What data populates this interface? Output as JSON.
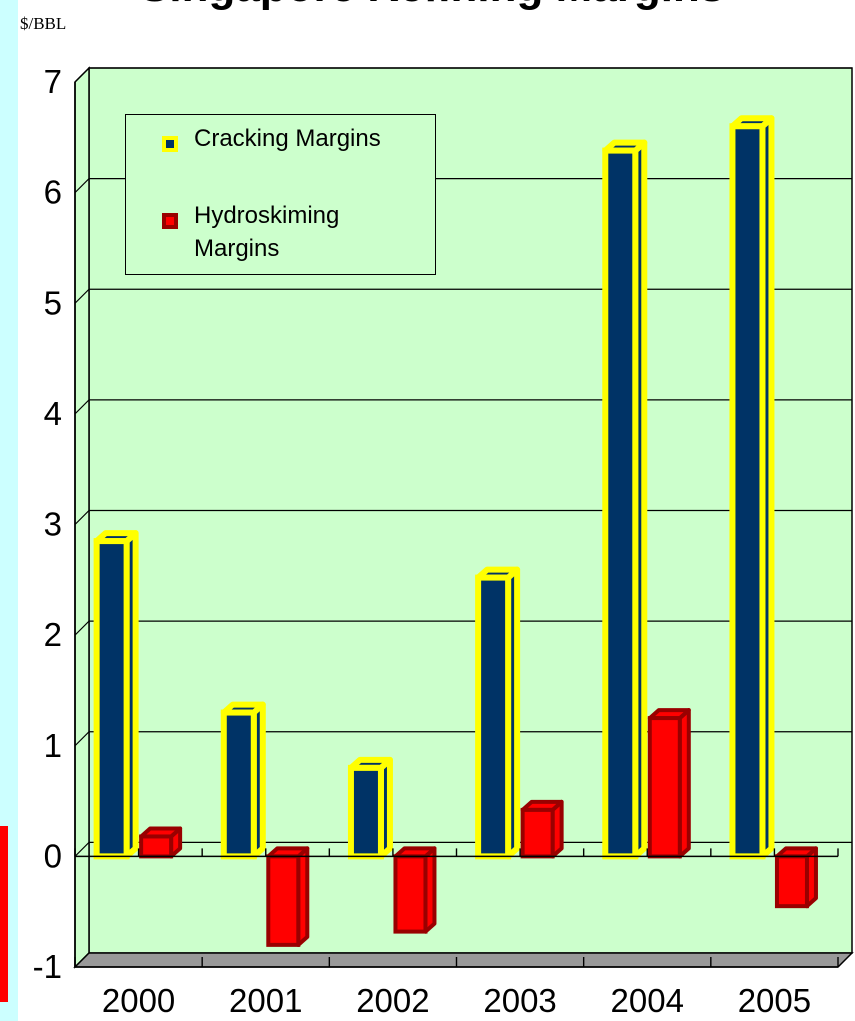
{
  "title": "Singapore Refining Margins",
  "unit_label": "$/BBL",
  "legend": [
    {
      "label": "Cracking Margins"
    },
    {
      "label": "Hydroskiming Margins"
    }
  ],
  "colors": {
    "cracking_fill": "#003366",
    "cracking_border": "#ffff00",
    "hydro_fill": "#ff0000",
    "hydro_border": "#990000",
    "plot_background": "#ccffcc",
    "left_strip": "#ccffff",
    "accent_mark": "#ff0000"
  },
  "chart_data": {
    "type": "bar",
    "style": "3d",
    "categories": [
      "2000",
      "2001",
      "2002",
      "2003",
      "2004",
      "2005"
    ],
    "series": [
      {
        "name": "Cracking Margins",
        "values": [
          2.85,
          1.3,
          0.8,
          2.52,
          6.38,
          6.6
        ]
      },
      {
        "name": "Hydroskiming Margins",
        "values": [
          0.18,
          -0.8,
          -0.68,
          0.42,
          1.25,
          -0.45
        ]
      }
    ],
    "y_ticks": [
      "7",
      "6",
      "5",
      "4",
      "3",
      "2",
      "1",
      "0",
      "-1"
    ],
    "ylim": [
      -1,
      7
    ],
    "xlabel": "",
    "ylabel": "$/BBL",
    "grid": true,
    "legend_position": "top-left"
  }
}
